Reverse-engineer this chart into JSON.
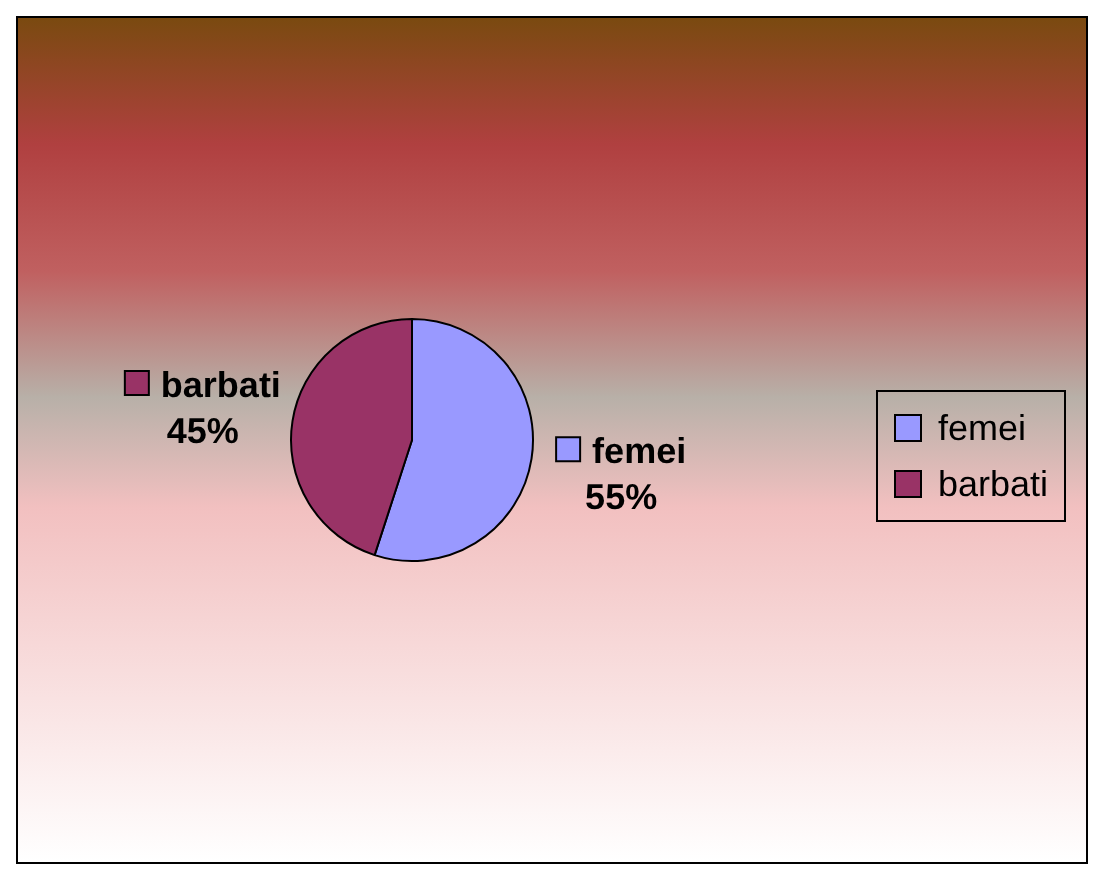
{
  "chart_data": {
    "type": "pie",
    "categories": [
      "femei",
      "barbati"
    ],
    "values": [
      55,
      45
    ],
    "colors": [
      "#9999ff",
      "#993366"
    ],
    "value_labels": [
      "55%",
      "45%"
    ],
    "legend": "right"
  }
}
